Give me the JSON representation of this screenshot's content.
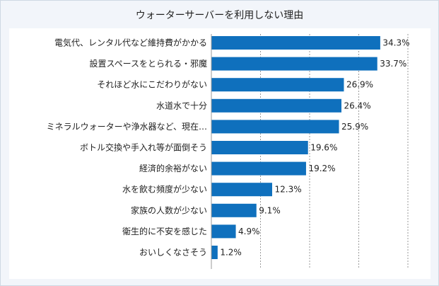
{
  "chart_data": {
    "type": "bar",
    "orientation": "horizontal",
    "title": "ウォーターサーバーを利用しない理由",
    "categories": [
      "電気代、レンタル代など維持費がかかる",
      "設置スペースをとられる・邪魔",
      "それほど水にこだわりがない",
      "水道水で十分",
      "ミネラルウォーターや浄水器など、現在…",
      "ボトル交換や手入れ等が面倒そう",
      "経済的余裕がない",
      "水を飲む頻度が少ない",
      "家族の人数が少ない",
      "衛生的に不安を感じた",
      "おいしくなさそう"
    ],
    "values": [
      34.3,
      33.7,
      26.9,
      26.4,
      25.9,
      19.6,
      19.2,
      12.3,
      9.1,
      4.9,
      1.2
    ],
    "value_labels": [
      "34.3%",
      "33.7%",
      "26.9%",
      "26.4%",
      "25.9%",
      "19.6%",
      "19.2%",
      "12.3%",
      "9.1%",
      "4.9%",
      "1.2%"
    ],
    "xlim": [
      0,
      40
    ],
    "grid": true,
    "colors": {
      "bar": "#0f70bd",
      "grid": "#9a9a9a",
      "background": "#f2f5fa",
      "panel": "#ffffff"
    }
  }
}
